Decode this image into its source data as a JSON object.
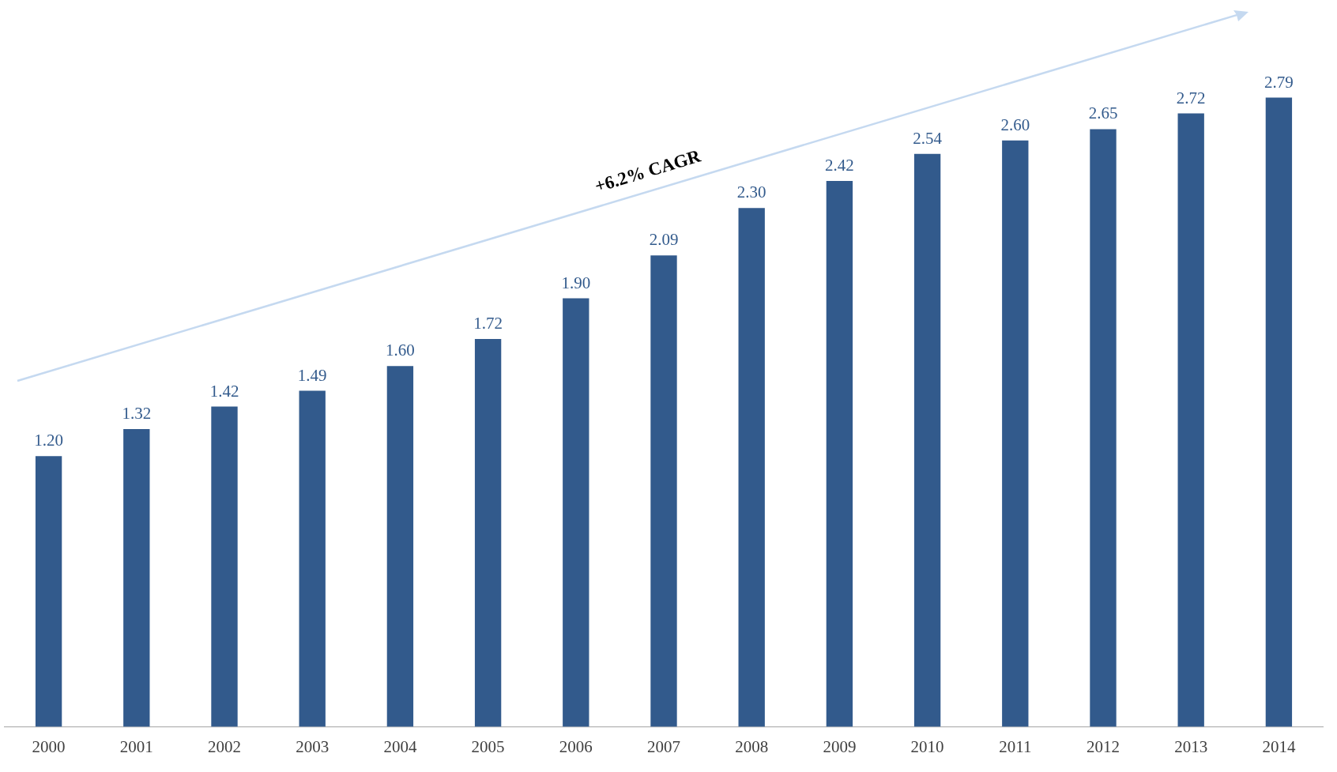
{
  "chart_data": {
    "type": "bar",
    "categories": [
      "2000",
      "2001",
      "2002",
      "2003",
      "2004",
      "2005",
      "2006",
      "2007",
      "2008",
      "2009",
      "2010",
      "2011",
      "2012",
      "2013",
      "2014"
    ],
    "values": [
      1.2,
      1.32,
      1.42,
      1.49,
      1.6,
      1.72,
      1.9,
      2.09,
      2.3,
      2.42,
      2.54,
      2.6,
      2.65,
      2.72,
      2.79
    ],
    "value_labels": [
      "1.20",
      "1.32",
      "1.42",
      "1.49",
      "1.60",
      "1.72",
      "1.90",
      "2.09",
      "2.30",
      "2.42",
      "2.54",
      "2.60",
      "2.65",
      "2.72",
      "2.79"
    ],
    "color": "#325a8c",
    "grid": false,
    "legend": false,
    "annotations": [
      "+6.2% CAGR"
    ]
  }
}
